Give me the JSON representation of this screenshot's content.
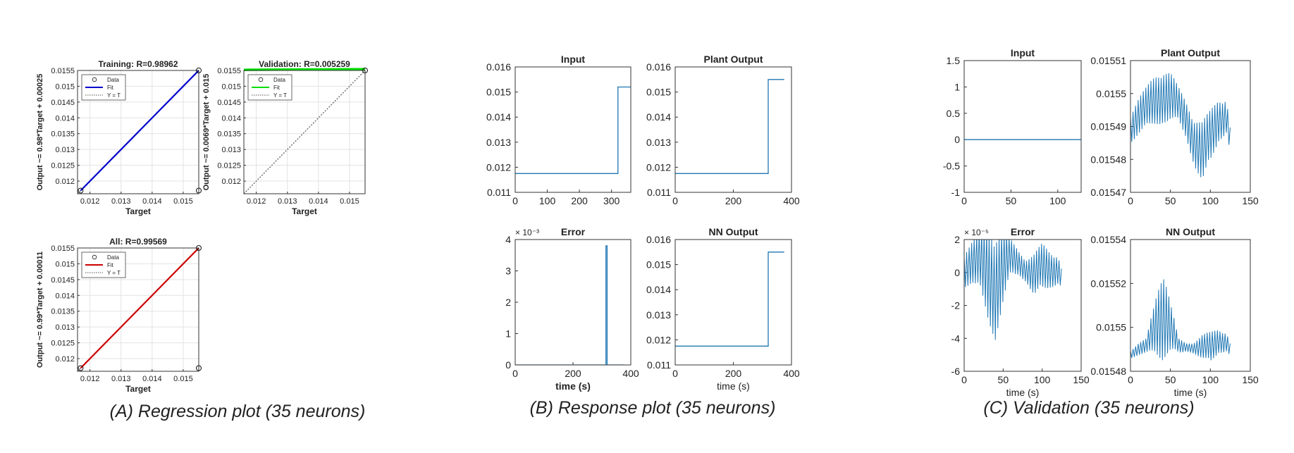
{
  "captions": {
    "a": "(A) Regression plot (35 neurons)",
    "b": "(B) Response plot (35 neurons)",
    "c": "(C) Validation (35 neurons)"
  },
  "regression": {
    "x_label": "Target",
    "x_ticks": [
      "0.012",
      "0.013",
      "0.014",
      "0.015"
    ],
    "y_ticks": [
      "0.012",
      "0.0125",
      "0.013",
      "0.0135",
      "0.014",
      "0.0145",
      "0.015",
      "0.0155"
    ],
    "legend": [
      "Data",
      "Fit",
      "Y = T"
    ],
    "colors": {
      "training": "#0000cc",
      "validation": "#00dd00",
      "all": "#cc0000",
      "identity": "#555555"
    }
  },
  "chart_data": [
    {
      "id": "training",
      "type": "scatter",
      "title": "Training: R=0.98962",
      "xlabel": "Target",
      "ylabel": "Output ~= 0.98*Target + 0.00025",
      "xlim": [
        0.0116,
        0.0155
      ],
      "ylim": [
        0.0116,
        0.0155
      ],
      "fit_line": [
        [
          0.0117,
          0.0117
        ],
        [
          0.0155,
          0.0155
        ]
      ],
      "points": [
        [
          0.0117,
          0.0117
        ],
        [
          0.0155,
          0.0155
        ],
        [
          0.0155,
          0.0117
        ]
      ]
    },
    {
      "id": "validation",
      "type": "scatter",
      "title": "Validation: R=0.005259",
      "xlabel": "Target",
      "ylabel": "Output ~= 0.0069*Target + 0.015",
      "xlim": [
        0.0116,
        0.0155
      ],
      "ylim": [
        0.0116,
        0.0155
      ],
      "fit_line": [
        [
          0.0116,
          0.01552
        ],
        [
          0.0155,
          0.01554
        ]
      ],
      "points": [
        [
          0.0155,
          0.0155
        ]
      ]
    },
    {
      "id": "all",
      "type": "scatter",
      "title": "All: R=0.99569",
      "xlabel": "Target",
      "ylabel": "Output ~= 0.99*Target + 0.00011",
      "xlim": [
        0.0116,
        0.0155
      ],
      "ylim": [
        0.0116,
        0.0155
      ],
      "fit_line": [
        [
          0.0117,
          0.0117
        ],
        [
          0.0155,
          0.0155
        ]
      ],
      "points": [
        [
          0.0117,
          0.0117
        ],
        [
          0.0155,
          0.0155
        ],
        [
          0.0155,
          0.0117
        ]
      ]
    },
    {
      "id": "b-input",
      "type": "line",
      "title": "Input",
      "xlabel": "",
      "xlim": [
        0,
        360
      ],
      "ylim": [
        0.011,
        0.016
      ],
      "x_ticks": [
        "0",
        "100",
        "200",
        "300"
      ],
      "y_ticks": [
        "0.011",
        "0.012",
        "0.013",
        "0.014",
        "0.015",
        "0.016"
      ],
      "series": [
        {
          "x": [
            0,
            320,
            320,
            360
          ],
          "y": [
            0.01175,
            0.01175,
            0.0152,
            0.0152
          ]
        }
      ]
    },
    {
      "id": "b-plant",
      "type": "line",
      "title": "Plant Output",
      "xlabel": "",
      "xlim": [
        0,
        400
      ],
      "ylim": [
        0.011,
        0.016
      ],
      "x_ticks": [
        "0",
        "200",
        "400"
      ],
      "y_ticks": [
        "0.011",
        "0.012",
        "0.013",
        "0.014",
        "0.015",
        "0.016"
      ],
      "series": [
        {
          "x": [
            0,
            320,
            320,
            375
          ],
          "y": [
            0.01175,
            0.01175,
            0.0155,
            0.0155
          ]
        }
      ]
    },
    {
      "id": "b-error",
      "type": "line",
      "title": "Error",
      "xlabel": "time (s)",
      "xlim": [
        0,
        400
      ],
      "ylim": [
        0,
        4
      ],
      "exponent": "× 10⁻³",
      "x_ticks": [
        "0",
        "200",
        "400"
      ],
      "y_ticks": [
        "0",
        "1",
        "2",
        "3",
        "4"
      ],
      "series": [
        {
          "x": [
            0,
            314,
            314,
            318,
            318,
            322,
            322,
            375
          ],
          "y": [
            0,
            0,
            3.8,
            3.8,
            0,
            0,
            0,
            0
          ]
        }
      ]
    },
    {
      "id": "b-nn",
      "type": "line",
      "title": "NN Output",
      "xlabel": "time (s)",
      "xlim": [
        0,
        400
      ],
      "ylim": [
        0.011,
        0.016
      ],
      "x_ticks": [
        "0",
        "200",
        "400"
      ],
      "y_ticks": [
        "0.011",
        "0.012",
        "0.013",
        "0.014",
        "0.015",
        "0.016"
      ],
      "series": [
        {
          "x": [
            0,
            320,
            320,
            375
          ],
          "y": [
            0.01175,
            0.01175,
            0.0155,
            0.0155
          ]
        }
      ]
    },
    {
      "id": "c-input",
      "type": "line",
      "title": "Input",
      "xlabel": "",
      "xlim": [
        0,
        125
      ],
      "ylim": [
        -1,
        1.5
      ],
      "x_ticks": [
        "0",
        "50",
        "100"
      ],
      "y_ticks": [
        "-1",
        "-0.5",
        "0",
        "0.5",
        "1",
        "1.5"
      ],
      "series": [
        {
          "x": [
            0,
            125
          ],
          "y": [
            0,
            0
          ]
        }
      ]
    },
    {
      "id": "c-plant",
      "type": "line",
      "title": "Plant Output",
      "xlabel": "",
      "xlim": [
        0,
        150
      ],
      "ylim": [
        0.01547,
        0.01551
      ],
      "x_ticks": [
        "0",
        "50",
        "100",
        "150"
      ],
      "y_ticks": [
        "0.01547",
        "0.01548",
        "0.01549",
        "0.0155",
        "0.01551"
      ],
      "series": [
        {
          "x": [
            0,
            10,
            20,
            30,
            40,
            50,
            60,
            70,
            80,
            90,
            100,
            110,
            120,
            125
          ],
          "y": [
            0.01549,
            0.015493,
            0.015495,
            0.015498,
            0.0155,
            0.015499,
            0.015496,
            0.015492,
            0.015486,
            0.015482,
            0.015486,
            0.015492,
            0.015494,
            0.015486
          ],
          "amplitude": [
            5e-06,
            6e-06,
            7e-06,
            8e-06,
            9e-06,
            8e-06,
            6e-06,
            6e-06,
            8e-06,
            1e-05,
            9e-06,
            7e-06,
            6e-06,
            4e-06
          ]
        }
      ]
    },
    {
      "id": "c-error",
      "type": "line",
      "title": "Error",
      "xlabel": "time (s)",
      "xlim": [
        0,
        150
      ],
      "ylim": [
        -6,
        2
      ],
      "exponent": "× 10⁻⁵",
      "x_ticks": [
        "0",
        "50",
        "100",
        "150"
      ],
      "y_ticks": [
        "-6",
        "-4",
        "-2",
        "0",
        "2"
      ],
      "series": [
        {
          "x": [
            0,
            10,
            20,
            30,
            40,
            50,
            60,
            70,
            80,
            90,
            100,
            110,
            120,
            125
          ],
          "y": [
            0.3,
            0.6,
            0.5,
            0.0,
            -0.5,
            0.3,
            0.8,
            0.6,
            0.2,
            -0.2,
            0.2,
            0.2,
            0.3,
            -0.3
          ],
          "amplitude": [
            1.2,
            1.4,
            2.0,
            3.0,
            3.6,
            2.4,
            1.2,
            0.8,
            0.8,
            1.4,
            1.6,
            1.2,
            1.0,
            0.6
          ]
        }
      ]
    },
    {
      "id": "c-nn",
      "type": "line",
      "title": "NN Output",
      "xlabel": "time (s)",
      "xlim": [
        0,
        150
      ],
      "ylim": [
        0.01548,
        0.01554
      ],
      "x_ticks": [
        "0",
        "50",
        "100",
        "150"
      ],
      "y_ticks": [
        "0.01548",
        "0.0155",
        "0.01552",
        "0.01554"
      ],
      "series": [
        {
          "x": [
            0,
            10,
            20,
            30,
            40,
            50,
            60,
            70,
            80,
            90,
            100,
            110,
            120,
            125
          ],
          "y": [
            0.015488,
            0.01549,
            0.015491,
            0.0155,
            0.015509,
            0.0155,
            0.015491,
            0.015491,
            0.015491,
            0.015491,
            0.01549,
            0.015494,
            0.015494,
            0.01549
          ],
          "amplitude": [
            2e-06,
            3e-06,
            4e-06,
            1.2e-05,
            2.4e-05,
            1.2e-05,
            4e-06,
            2e-06,
            3e-06,
            6e-06,
            8e-06,
            6e-06,
            5e-06,
            3e-06
          ]
        }
      ]
    }
  ]
}
